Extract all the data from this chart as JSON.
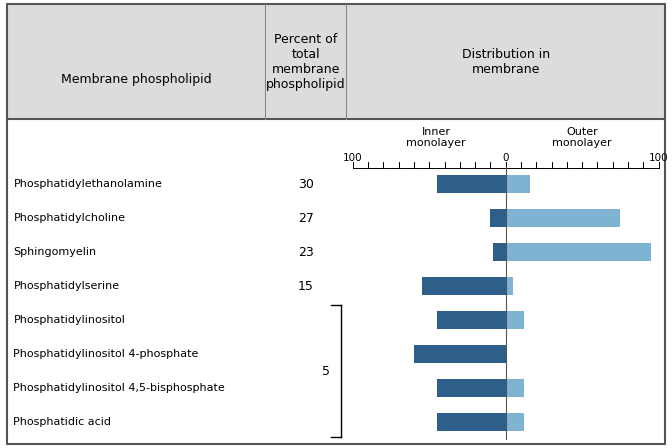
{
  "rows": [
    {
      "label": "Phosphatidylethanolamine",
      "percent": 30,
      "inner": 45,
      "outer": 16
    },
    {
      "label": "Phosphatidylcholine",
      "percent": 27,
      "inner": 10,
      "outer": 75
    },
    {
      "label": "Sphingomyelin",
      "percent": 23,
      "inner": 8,
      "outer": 95
    },
    {
      "label": "Phosphatidylserine",
      "percent": 15,
      "inner": 55,
      "outer": 5
    },
    {
      "label": "Phosphatidylinositol",
      "percent": null,
      "inner": 45,
      "outer": 12
    },
    {
      "label": "Phosphatidylinositol 4-phosphate",
      "percent": null,
      "inner": 60,
      "outer": 0
    },
    {
      "label": "Phosphatidylinositol 4,5-bisphosphate",
      "percent": null,
      "inner": 45,
      "outer": 12
    },
    {
      "label": "Phosphatidic acid",
      "percent": null,
      "inner": 45,
      "outer": 12
    }
  ],
  "group_label": "5",
  "group_rows": [
    4,
    5,
    6,
    7
  ],
  "header_bg": "#dcdcdc",
  "dark_blue": "#2e5f8a",
  "light_blue": "#7fb3d3",
  "bar_height": 0.55,
  "axis_max": 100,
  "header_col1": "Membrane phospholipid",
  "header_col2": "Percent of\ntotal\nmembrane\nphospholipid",
  "header_col3": "Distribution in\nmembrane",
  "sub_inner": "Inner\nmonolayer",
  "sub_outer": "Outer\nmonolayer"
}
